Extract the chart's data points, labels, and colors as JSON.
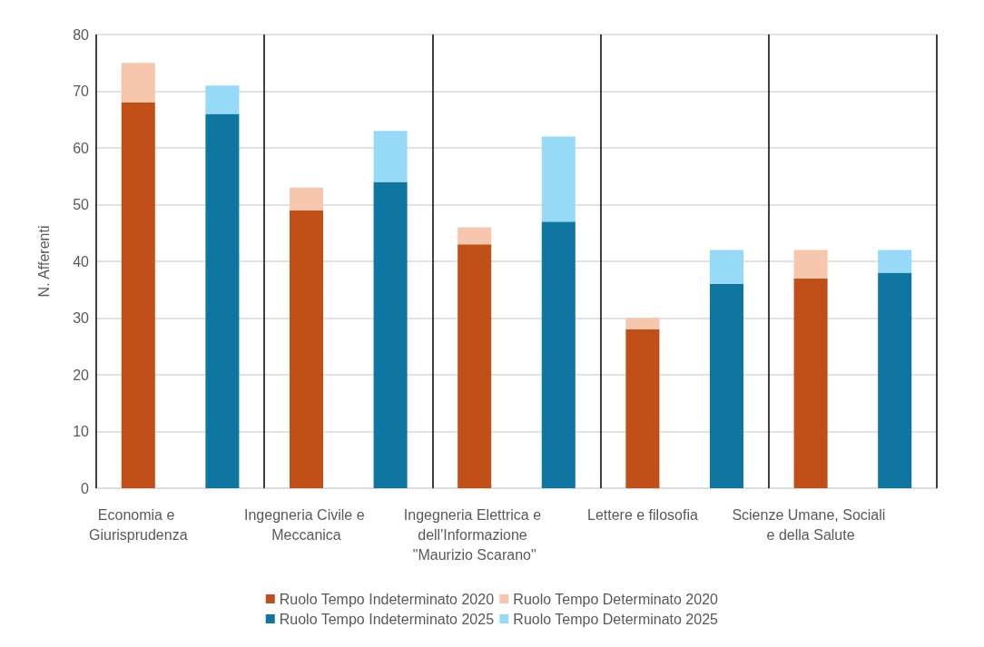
{
  "chart_data": {
    "type": "bar",
    "ylabel": "N. Afferenti",
    "categories": [
      "Economia e Giurisprudenza",
      null,
      "Ingegneria Civile e Meccanica",
      null,
      "Ingegneria Elettrica e dell'Informazione \"Maurizio Scarano\"",
      null,
      "Lettere e filosofia",
      null,
      "Scienze Umane, Sociali e della Salute",
      null
    ],
    "series": [
      {
        "name": "Ruolo Tempo Indeterminato 2020",
        "color": "#c05017",
        "values": [
          68,
          null,
          49,
          null,
          43,
          null,
          28,
          null,
          37,
          null
        ]
      },
      {
        "name": "Ruolo Tempo Determinato 2020",
        "color": "#f6c6ad",
        "values": [
          7,
          null,
          4,
          null,
          3,
          null,
          2,
          null,
          5,
          null
        ]
      },
      {
        "name": "Ruolo Tempo Indeterminato 2025",
        "color": "#0e76a0",
        "values": [
          null,
          66,
          null,
          54,
          null,
          47,
          null,
          36,
          null,
          38
        ]
      },
      {
        "name": "Ruolo Tempo Determinato 2025",
        "color": "#97daf7",
        "values": [
          null,
          5,
          null,
          9,
          null,
          15,
          null,
          6,
          null,
          4
        ]
      }
    ],
    "stacked": true,
    "ylim": [
      0,
      80
    ],
    "yticks": [
      0,
      10,
      20,
      30,
      40,
      50,
      60,
      70,
      80
    ],
    "grid": true,
    "legend": "bottom"
  }
}
